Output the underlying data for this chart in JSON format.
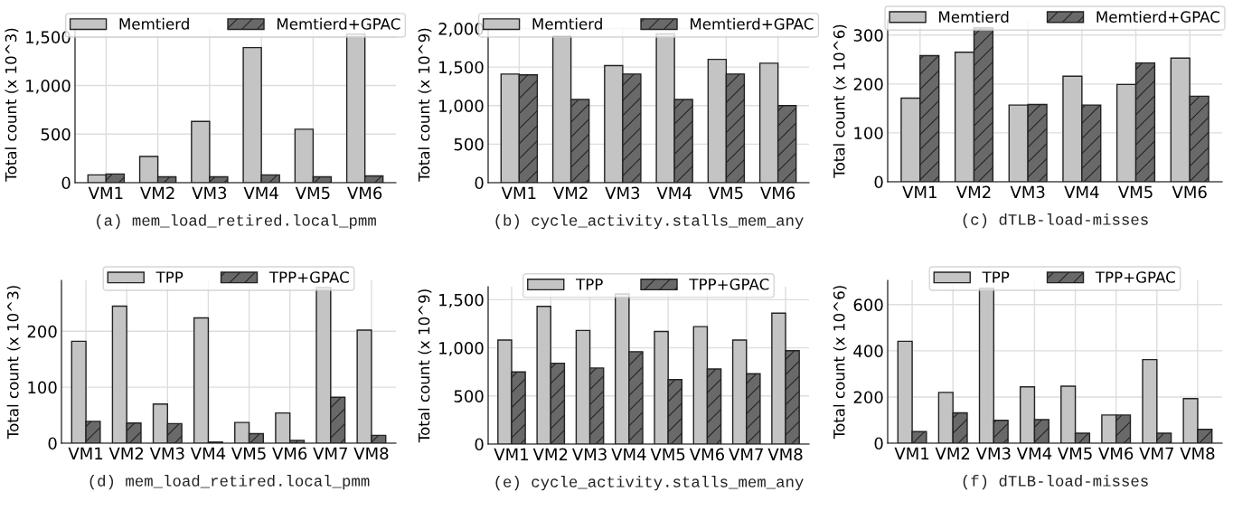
{
  "chart_data": [
    {
      "type": "bar",
      "title": "(a) mem_load_retired.local_pmm",
      "ylabel": "Total count (x 10^3)",
      "categories": [
        "VM1",
        "VM2",
        "VM3",
        "VM4",
        "VM5",
        "VM6"
      ],
      "series": [
        {
          "name": "Memtierd",
          "color": "#c4c4c4",
          "values": [
            80,
            270,
            630,
            1390,
            550,
            1530
          ]
        },
        {
          "name": "Memtierd+GPAC",
          "color": "#696969",
          "values": [
            90,
            60,
            60,
            80,
            60,
            70
          ]
        }
      ],
      "ylim": [
        0,
        1610
      ],
      "yticks": [
        0,
        500,
        {
          "value": 1000,
          "label": "1,000"
        },
        {
          "value": 1500,
          "label": "1,500"
        }
      ],
      "grid": true,
      "legend": "top"
    },
    {
      "type": "bar",
      "title": "(b) cycle_activity.stalls_mem_any",
      "ylabel": "Total count (x 10^9)",
      "categories": [
        "VM1",
        "VM2",
        "VM3",
        "VM4",
        "VM5",
        "VM6"
      ],
      "series": [
        {
          "name": "Memtierd",
          "color": "#c4c4c4",
          "values": [
            1410,
            1900,
            1520,
            1930,
            1600,
            1550
          ]
        },
        {
          "name": "Memtierd+GPAC",
          "color": "#696969",
          "values": [
            1400,
            1080,
            1410,
            1080,
            1410,
            1000
          ]
        }
      ],
      "ylim": [
        0,
        2030
      ],
      "yticks": [
        0,
        500,
        {
          "value": 1000,
          "label": "1,000"
        },
        {
          "value": 1500,
          "label": "1,500"
        },
        {
          "value": 2000,
          "label": "2,000"
        }
      ],
      "grid": true,
      "legend": "top"
    },
    {
      "type": "bar",
      "title": "(c) dTLB-load-misses",
      "ylabel": "Total count (x 10^6)",
      "categories": [
        "VM1",
        "VM2",
        "VM3",
        "VM4",
        "VM5",
        "VM6"
      ],
      "series": [
        {
          "name": "Memtierd",
          "color": "#c4c4c4",
          "values": [
            171,
            265,
            157,
            216,
            199,
            253
          ]
        },
        {
          "name": "Memtierd+GPAC",
          "color": "#696969",
          "values": [
            258,
            315,
            158,
            157,
            243,
            175
          ]
        }
      ],
      "ylim": [
        0,
        331
      ],
      "yticks": [
        0,
        100,
        200,
        300
      ],
      "grid": true,
      "legend": "top"
    },
    {
      "type": "bar",
      "title": "(d) mem_load_retired.local_pmm",
      "ylabel": "Total count (x 10^3)",
      "categories": [
        "VM1",
        "VM2",
        "VM3",
        "VM4",
        "VM5",
        "VM6",
        "VM7",
        "VM8"
      ],
      "series": [
        {
          "name": "TPP",
          "color": "#c4c4c4",
          "values": [
            182,
            245,
            70,
            224,
            37,
            54,
            278,
            202
          ]
        },
        {
          "name": "TPP+GPAC",
          "color": "#696969",
          "values": [
            39,
            36,
            35,
            2,
            17,
            5,
            82,
            14
          ]
        }
      ],
      "ylim": [
        0,
        291
      ],
      "yticks": [
        0,
        100,
        200
      ],
      "grid": true,
      "legend": "top"
    },
    {
      "type": "bar",
      "title": "(e) cycle_activity.stalls_mem_any",
      "ylabel": "Total count (x 10^9)",
      "categories": [
        "VM1",
        "VM2",
        "VM3",
        "VM4",
        "VM5",
        "VM6",
        "VM7",
        "VM8"
      ],
      "series": [
        {
          "name": "TPP",
          "color": "#c4c4c4",
          "values": [
            1080,
            1430,
            1180,
            1560,
            1170,
            1220,
            1080,
            1360
          ]
        },
        {
          "name": "TPP+GPAC",
          "color": "#696969",
          "values": [
            750,
            840,
            790,
            960,
            670,
            780,
            730,
            970
          ]
        }
      ],
      "ylim": [
        0,
        1635
      ],
      "yticks": [
        0,
        500,
        {
          "value": 1000,
          "label": "1,000"
        },
        {
          "value": 1500,
          "label": "1,500"
        }
      ],
      "grid": true,
      "legend": "top"
    },
    {
      "type": "bar",
      "title": "(f) dTLB-load-misses",
      "ylabel": "Total count (x 10^6)",
      "categories": [
        "VM1",
        "VM2",
        "VM3",
        "VM4",
        "VM5",
        "VM6",
        "VM7",
        "VM8"
      ],
      "series": [
        {
          "name": "TPP",
          "color": "#c4c4c4",
          "values": [
            441,
            220,
            671,
            244,
            247,
            122,
            362,
            193
          ]
        },
        {
          "name": "TPP+GPAC",
          "color": "#696969",
          "values": [
            50,
            131,
            99,
            102,
            43,
            122,
            43,
            60
          ]
        }
      ],
      "ylim": [
        0,
        705
      ],
      "yticks": [
        0,
        200,
        400,
        600
      ],
      "grid": true,
      "legend": "top"
    }
  ]
}
